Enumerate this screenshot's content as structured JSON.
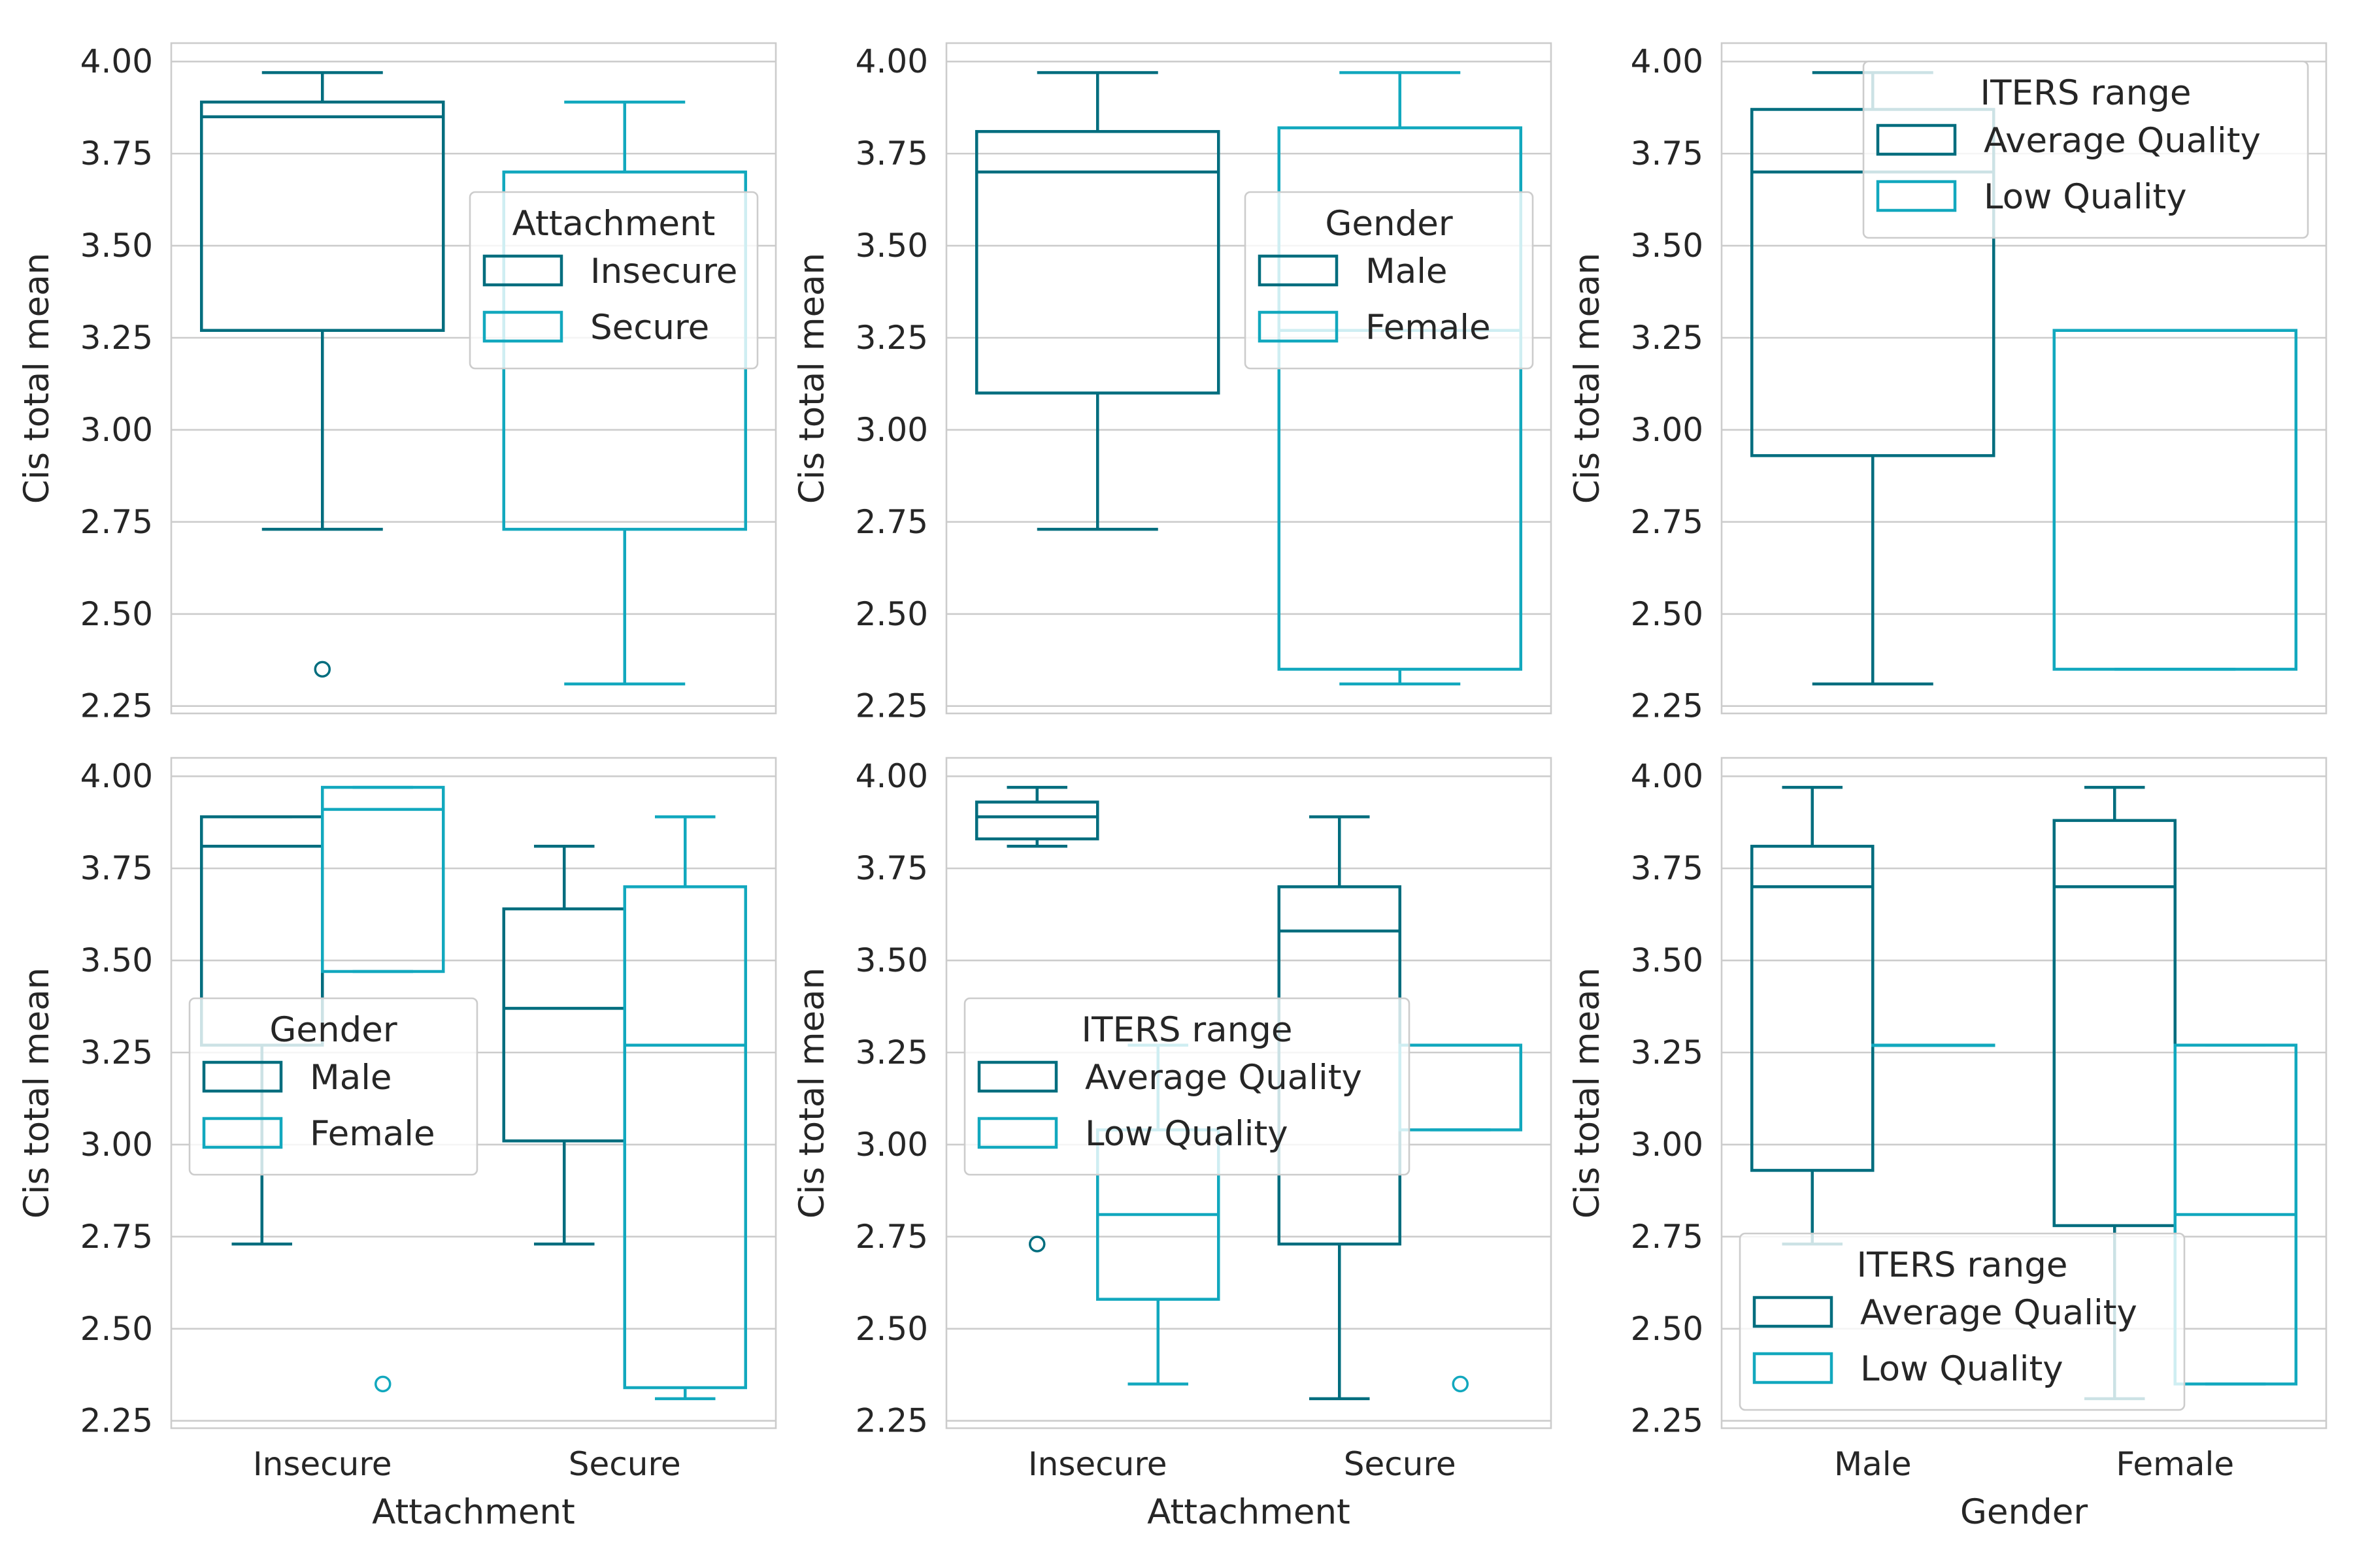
{
  "colors": {
    "dark": "#006d7e",
    "light": "#12a8be"
  },
  "chart_data": [
    {
      "type": "boxplot",
      "xlabel": "",
      "ylabel": "Cis total mean",
      "ylim": [
        2.23,
        4.05
      ],
      "yticks": [
        "2.25",
        "2.50",
        "2.75",
        "3.00",
        "3.25",
        "3.50",
        "3.75",
        "4.00"
      ],
      "categories": [
        "Insecure",
        "Secure"
      ],
      "show_xticklabels": false,
      "hue": "Attachment",
      "legend": {
        "title": "Attachment",
        "position": "center-right",
        "entries": [
          "Insecure",
          "Secure"
        ]
      },
      "boxes": [
        {
          "category": "Insecure",
          "series": "Insecure",
          "whislo": 2.73,
          "q1": 3.27,
          "median": 3.85,
          "q3": 3.89,
          "whishi": 3.97,
          "fliers": [
            2.35
          ]
        },
        {
          "category": "Secure",
          "series": "Secure",
          "whislo": 2.31,
          "q1": 2.73,
          "median": 3.7,
          "q3": 3.7,
          "whishi": 3.89,
          "fliers": []
        }
      ]
    },
    {
      "type": "boxplot",
      "xlabel": "",
      "ylabel": "Cis total mean",
      "ylim": [
        2.23,
        4.05
      ],
      "yticks": [
        "2.25",
        "2.50",
        "2.75",
        "3.00",
        "3.25",
        "3.50",
        "3.75",
        "4.00"
      ],
      "categories": [
        "Male",
        "Female"
      ],
      "show_xticklabels": false,
      "hue": "Gender",
      "legend": {
        "title": "Gender",
        "position": "center-right",
        "entries": [
          "Male",
          "Female"
        ]
      },
      "boxes": [
        {
          "category": "Male",
          "series": "Male",
          "whislo": 2.73,
          "q1": 3.1,
          "median": 3.7,
          "q3": 3.81,
          "whishi": 3.97,
          "fliers": []
        },
        {
          "category": "Female",
          "series": "Female",
          "whislo": 2.31,
          "q1": 2.35,
          "median": 3.27,
          "q3": 3.82,
          "whishi": 3.97,
          "fliers": []
        }
      ]
    },
    {
      "type": "boxplot",
      "xlabel": "",
      "ylabel": "Cis total mean",
      "ylim": [
        2.23,
        4.05
      ],
      "yticks": [
        "2.25",
        "2.50",
        "2.75",
        "3.00",
        "3.25",
        "3.50",
        "3.75",
        "4.00"
      ],
      "categories": [
        "Average Quality",
        "Low Quality"
      ],
      "show_xticklabels": false,
      "hue": "ITERS range",
      "legend": {
        "title": "ITERS range",
        "position": "upper-right",
        "entries": [
          "Average Quality",
          "Low Quality"
        ]
      },
      "boxes": [
        {
          "category": "Average Quality",
          "series": "Average Quality",
          "whislo": 2.31,
          "q1": 2.93,
          "median": 3.7,
          "q3": 3.87,
          "whishi": 3.97,
          "fliers": []
        },
        {
          "category": "Low Quality",
          "series": "Low Quality",
          "whislo": 2.35,
          "q1": 2.35,
          "median": 3.27,
          "q3": 3.27,
          "whishi": 3.27,
          "fliers": []
        }
      ]
    },
    {
      "type": "boxplot",
      "xlabel": "Attachment",
      "ylabel": "Cis total mean",
      "ylim": [
        2.23,
        4.05
      ],
      "yticks": [
        "2.25",
        "2.50",
        "2.75",
        "3.00",
        "3.25",
        "3.50",
        "3.75",
        "4.00"
      ],
      "categories": [
        "Insecure",
        "Secure"
      ],
      "show_xticklabels": true,
      "hue": "Gender",
      "legend": {
        "title": "Gender",
        "position": "center-left",
        "entries": [
          "Male",
          "Female"
        ]
      },
      "boxes": [
        {
          "category": "Insecure",
          "series": "Male",
          "whislo": 2.73,
          "q1": 3.27,
          "median": 3.81,
          "q3": 3.89,
          "whishi": 3.89,
          "fliers": []
        },
        {
          "category": "Insecure",
          "series": "Female",
          "whislo": 3.47,
          "q1": 3.47,
          "median": 3.91,
          "q3": 3.97,
          "whishi": 3.97,
          "fliers": [
            2.35
          ]
        },
        {
          "category": "Secure",
          "series": "Male",
          "whislo": 2.73,
          "q1": 3.01,
          "median": 3.37,
          "q3": 3.64,
          "whishi": 3.81,
          "fliers": []
        },
        {
          "category": "Secure",
          "series": "Female",
          "whislo": 2.31,
          "q1": 2.34,
          "median": 3.27,
          "q3": 3.7,
          "whishi": 3.89,
          "fliers": []
        }
      ]
    },
    {
      "type": "boxplot",
      "xlabel": "Attachment",
      "ylabel": "Cis total mean",
      "ylim": [
        2.23,
        4.05
      ],
      "yticks": [
        "2.25",
        "2.50",
        "2.75",
        "3.00",
        "3.25",
        "3.50",
        "3.75",
        "4.00"
      ],
      "categories": [
        "Insecure",
        "Secure"
      ],
      "show_xticklabels": true,
      "hue": "ITERS range",
      "legend": {
        "title": "ITERS range",
        "position": "center-left",
        "entries": [
          "Average Quality",
          "Low Quality"
        ]
      },
      "boxes": [
        {
          "category": "Insecure",
          "series": "Average Quality",
          "whislo": 3.81,
          "q1": 3.83,
          "median": 3.89,
          "q3": 3.93,
          "whishi": 3.97,
          "fliers": [
            2.73
          ]
        },
        {
          "category": "Insecure",
          "series": "Low Quality",
          "whislo": 2.35,
          "q1": 2.58,
          "median": 2.81,
          "q3": 3.04,
          "whishi": 3.27,
          "fliers": []
        },
        {
          "category": "Secure",
          "series": "Average Quality",
          "whislo": 2.31,
          "q1": 2.73,
          "median": 3.58,
          "q3": 3.7,
          "whishi": 3.89,
          "fliers": []
        },
        {
          "category": "Secure",
          "series": "Low Quality",
          "whislo": 3.04,
          "q1": 3.04,
          "median": 3.27,
          "q3": 3.27,
          "whishi": 3.27,
          "fliers": [
            2.35
          ]
        }
      ]
    },
    {
      "type": "boxplot",
      "xlabel": "Gender",
      "ylabel": "Cis total mean",
      "ylim": [
        2.23,
        4.05
      ],
      "yticks": [
        "2.25",
        "2.50",
        "2.75",
        "3.00",
        "3.25",
        "3.50",
        "3.75",
        "4.00"
      ],
      "categories": [
        "Male",
        "Female"
      ],
      "show_xticklabels": true,
      "hue": "ITERS range",
      "legend": {
        "title": "ITERS range",
        "position": "lower-left",
        "entries": [
          "Average Quality",
          "Low Quality"
        ]
      },
      "boxes": [
        {
          "category": "Male",
          "series": "Average Quality",
          "whislo": 2.73,
          "q1": 2.93,
          "median": 3.7,
          "q3": 3.81,
          "whishi": 3.97,
          "fliers": []
        },
        {
          "category": "Male",
          "series": "Low Quality",
          "whislo": 3.27,
          "q1": 3.27,
          "median": 3.27,
          "q3": 3.27,
          "whishi": 3.27,
          "fliers": []
        },
        {
          "category": "Female",
          "series": "Average Quality",
          "whislo": 2.31,
          "q1": 2.78,
          "median": 3.7,
          "q3": 3.88,
          "whishi": 3.97,
          "fliers": []
        },
        {
          "category": "Female",
          "series": "Low Quality",
          "whislo": 2.35,
          "q1": 2.35,
          "median": 2.81,
          "q3": 3.27,
          "whishi": 3.27,
          "fliers": []
        }
      ]
    }
  ]
}
